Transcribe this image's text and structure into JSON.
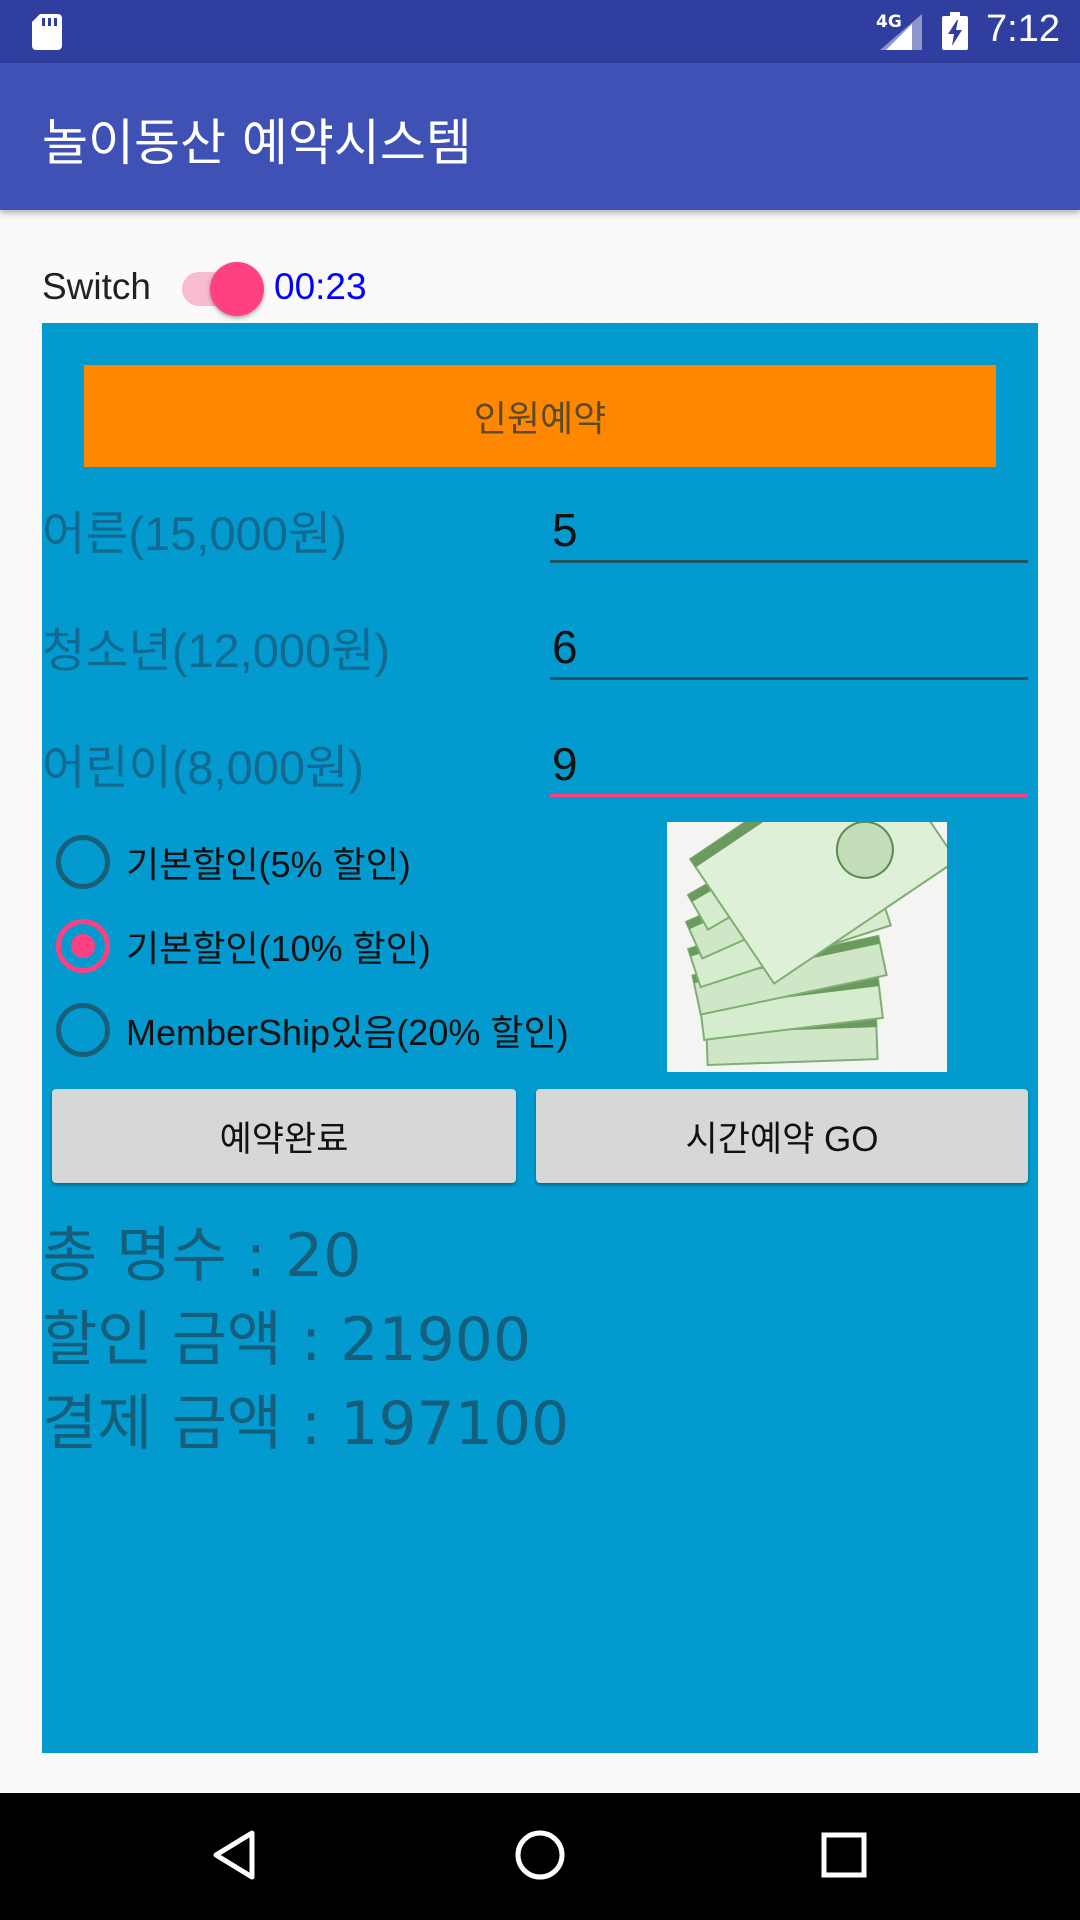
{
  "status_bar": {
    "network": "4G",
    "time": "7:12",
    "icons": [
      "sd-card-icon",
      "signal-icon",
      "battery-charging-icon"
    ]
  },
  "app_bar": {
    "title": "놀이동산 예약시스템"
  },
  "switch": {
    "label": "Switch",
    "checked": true,
    "timer": "00:23"
  },
  "reservation": {
    "header": "인원예약",
    "rows": [
      {
        "label": "어른(15,000원)",
        "value": "5"
      },
      {
        "label": "청소년(12,000원)",
        "value": "6"
      },
      {
        "label": "어린이(8,000원)",
        "value": "9"
      }
    ],
    "discounts": [
      {
        "label": "기본할인(5% 할인)",
        "checked": false
      },
      {
        "label": "기본할인(10% 할인)",
        "checked": true
      },
      {
        "label": "MemberShip있음(20% 할인)",
        "checked": false
      }
    ],
    "buttons": {
      "complete": "예약완료",
      "time_go": "시간예약 GO"
    },
    "summary": {
      "total_people": "총 명수 : 20",
      "discount_amount": "할인 금액 : 21900",
      "payment_amount": "결제 금액 : 197100"
    }
  },
  "colors": {
    "status_bar": "#303f9f",
    "app_bar": "#3f51b5",
    "panel": "#039bcf",
    "header_button": "#ff8800",
    "accent": "#ff4081"
  },
  "nav_bar": {
    "icons": [
      "back-icon",
      "home-icon",
      "recents-icon"
    ]
  }
}
